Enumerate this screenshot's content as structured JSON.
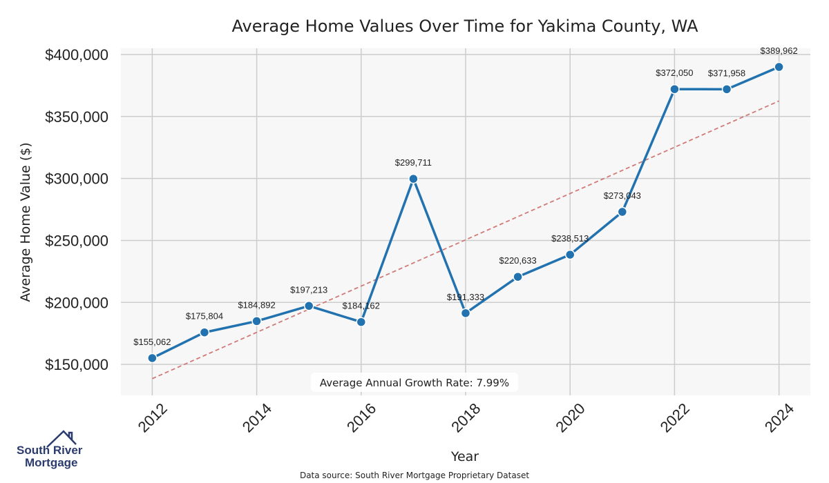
{
  "chart_data": {
    "type": "line",
    "title": "Average Home Values Over Time for Yakima County, WA",
    "xlabel": "Year",
    "ylabel": "Average Home Value ($)",
    "x": [
      2012,
      2013,
      2014,
      2015,
      2016,
      2017,
      2018,
      2019,
      2020,
      2021,
      2022,
      2023,
      2024
    ],
    "series": [
      {
        "values": [
          155062,
          175804,
          184892,
          197213,
          184162,
          299711,
          191333,
          220633,
          238513,
          273043,
          372050,
          371958,
          389962
        ],
        "data_labels": [
          "$155,062",
          "$175,804",
          "$184,892",
          "$197,213",
          "$184,162",
          "$299,711",
          "$191,333",
          "$220,633",
          "$238,513",
          "$273,043",
          "$372,050",
          "$371,958",
          "$389,962"
        ],
        "color": "#2272b0"
      }
    ],
    "trendline": {
      "start": [
        2012,
        138500
      ],
      "end": [
        2024,
        362500
      ],
      "color": "#d07a78",
      "style": "dashed"
    },
    "xticks": [
      "2012",
      "2014",
      "2016",
      "2018",
      "2020",
      "2022",
      "2024"
    ],
    "yticks": [
      "$150,000",
      "$200,000",
      "$250,000",
      "$300,000",
      "$350,000",
      "$400,000"
    ],
    "ytick_values": [
      150000,
      200000,
      250000,
      300000,
      350000,
      400000
    ],
    "xlim": [
      2011.4,
      2024.6
    ],
    "ylim": [
      125000,
      405000
    ],
    "grid": true,
    "annotation": "Average Annual Growth Rate: 7.99%",
    "background": "#f7f7f7"
  },
  "footer": {
    "source": "Data source: South River Mortgage Proprietary Dataset",
    "logo_line1": "South River",
    "logo_line2": "Mortgage"
  }
}
